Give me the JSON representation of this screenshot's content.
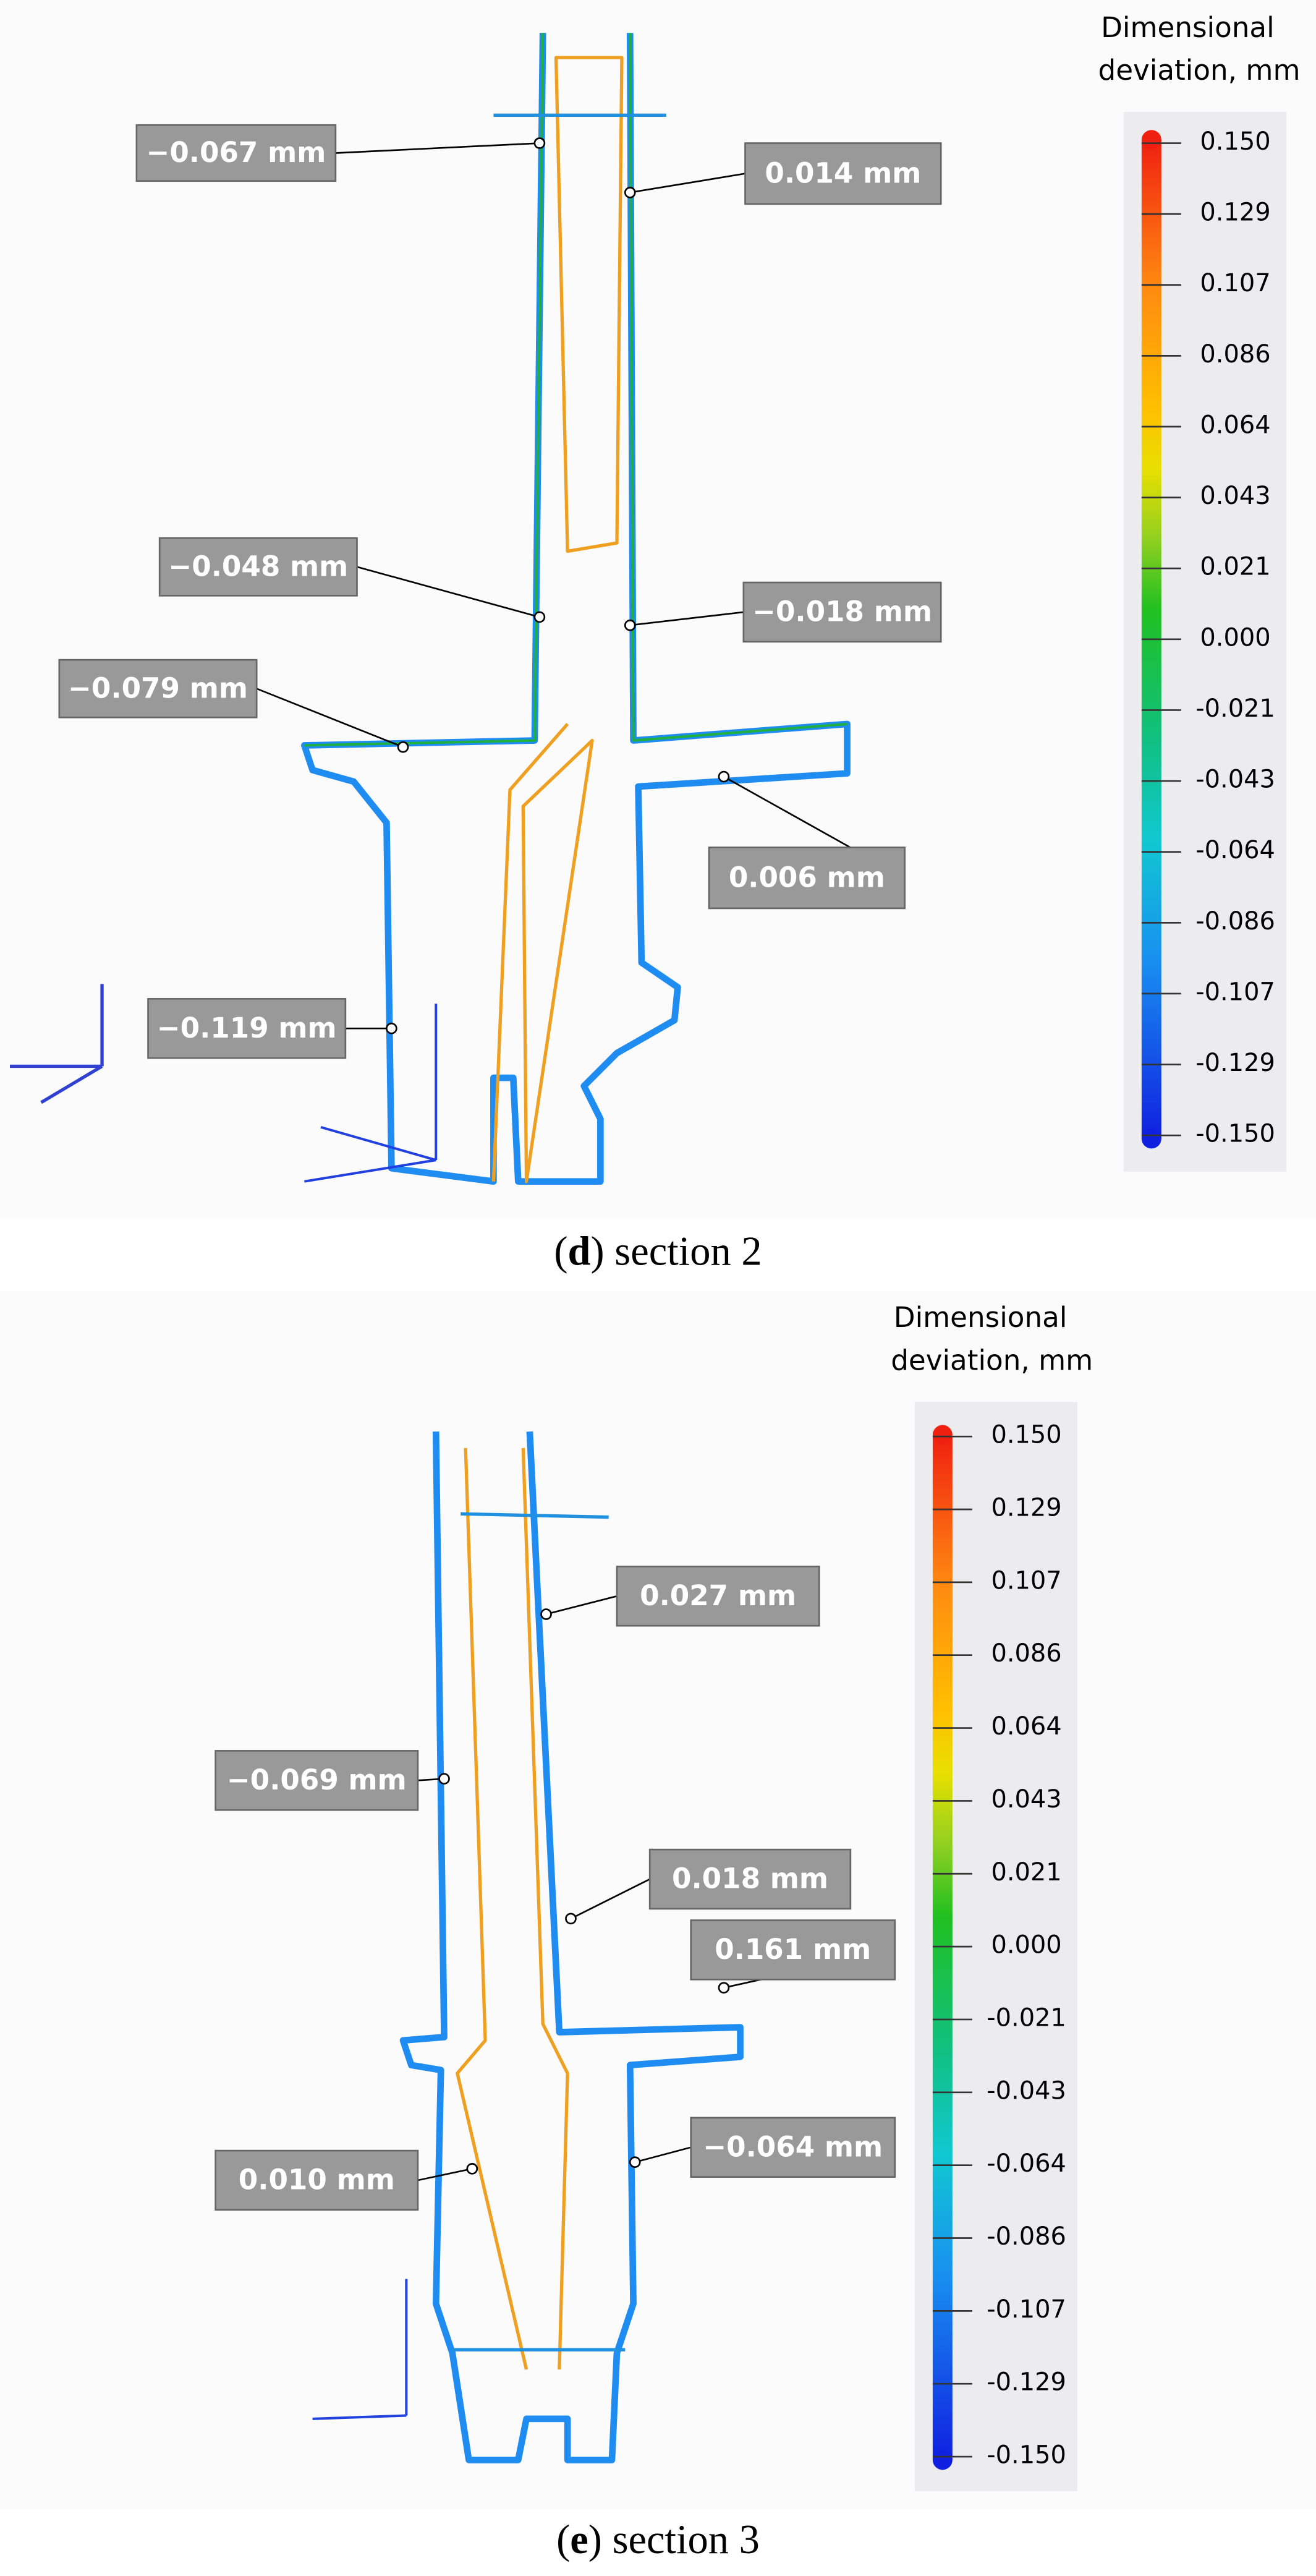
{
  "panels": [
    {
      "legend": {
        "title_line1": "Dimensional",
        "title_line2": "deviation, mm",
        "labels": [
          "0.150",
          "0.129",
          "0.107",
          "0.086",
          "0.064",
          "0.043",
          "0.021",
          "0.000",
          "-0.021",
          "-0.043",
          "-0.064",
          "-0.086",
          "-0.107",
          "-0.129",
          "-0.150"
        ]
      },
      "annotations": [
        "−0.067 mm",
        "0.014 mm",
        "−0.048 mm",
        "−0.018 mm",
        "−0.079 mm",
        "0.006 mm",
        "−0.119 mm"
      ],
      "caption": {
        "open": "(",
        "letter": "d",
        "rest": ") section 2"
      }
    },
    {
      "legend": {
        "title_line1": "Dimensional",
        "title_line2": "deviation, mm",
        "labels": [
          "0.150",
          "0.129",
          "0.107",
          "0.086",
          "0.064",
          "0.043",
          "0.021",
          "0.000",
          "-0.021",
          "-0.043",
          "-0.064",
          "-0.086",
          "-0.107",
          "-0.129",
          "-0.150"
        ]
      },
      "annotations": [
        "0.027 mm",
        "−0.069 mm",
        "0.018 mm",
        "0.161 mm",
        "0.010 mm",
        "−0.064 mm"
      ],
      "caption": {
        "open": "(",
        "letter": "e",
        "rest": ") section 3"
      }
    }
  ]
}
